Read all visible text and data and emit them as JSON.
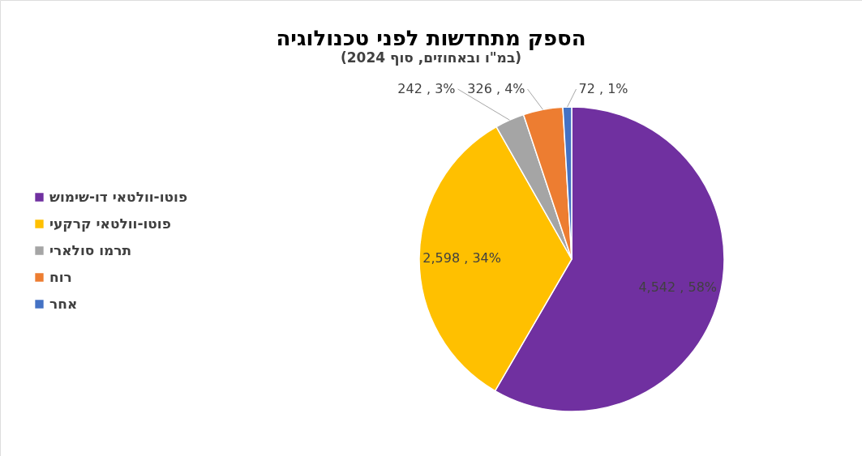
{
  "chart_data": {
    "type": "pie",
    "title": "הספק מתחדשות לפני טכנולוגיה",
    "subtitle": "(במ\"ו ובאחוזים, סוף 2024)",
    "categories": [
      "פוטו-וולטאי דו-שימוש",
      "פוטו-וולטאי  קרקעי",
      "תרמו סולארי",
      "רוח",
      "אחר"
    ],
    "values": [
      4542,
      2598,
      242,
      326,
      72
    ],
    "colors": [
      "#7030a0",
      "#ffc000",
      "#a5a5a5",
      "#ed7d31",
      "#4472c4"
    ],
    "value_labels": [
      "4,542 , 58%",
      "2,598 , 34%",
      "242 , 3%",
      "326 , 4%",
      "72 , 1%"
    ],
    "legend": "left"
  }
}
